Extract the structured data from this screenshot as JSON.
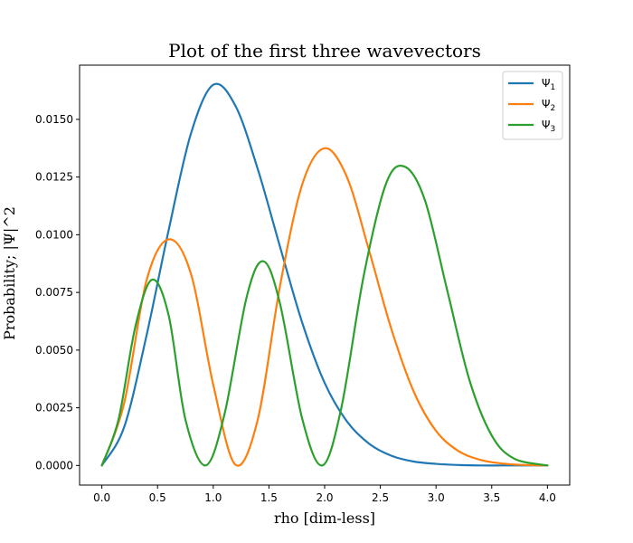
{
  "chart_data": {
    "type": "line",
    "title": "Plot of the first three wavevectors",
    "xlabel": "rho [dim-less]",
    "ylabel": "Probability; |Ψ|^2",
    "xlim": [
      -0.2,
      4.2
    ],
    "ylim": [
      -0.00085,
      0.01735
    ],
    "xticks": [
      0.0,
      0.5,
      1.0,
      1.5,
      2.0,
      2.5,
      3.0,
      3.5,
      4.0
    ],
    "xtick_labels": [
      "0.0",
      "0.5",
      "1.0",
      "1.5",
      "2.0",
      "2.5",
      "3.0",
      "3.5",
      "4.0"
    ],
    "yticks": [
      0.0,
      0.0025,
      0.005,
      0.0075,
      0.01,
      0.0125,
      0.015
    ],
    "ytick_labels": [
      "0.0000",
      "0.0025",
      "0.0050",
      "0.0075",
      "0.0100",
      "0.0125",
      "0.0150"
    ],
    "grid": false,
    "legend_position": "top-right",
    "series": [
      {
        "name": "Ψ",
        "subscript": "1",
        "color": "#1f77b4",
        "x": [
          0.0,
          0.2,
          0.4,
          0.6,
          0.8,
          1.0,
          1.2,
          1.4,
          1.6,
          1.8,
          2.0,
          2.2,
          2.4,
          2.6,
          2.8,
          3.0,
          3.2,
          3.4,
          3.6,
          3.8,
          4.0
        ],
        "y": [
          0.0,
          0.00166,
          0.00561,
          0.01021,
          0.01439,
          0.0165,
          0.01558,
          0.01284,
          0.00947,
          0.00617,
          0.00358,
          0.00191,
          0.00094,
          0.00042,
          0.00017,
          7e-05,
          2e-05,
          0.0,
          0.0,
          0.0,
          0.0
        ]
      },
      {
        "name": "Ψ",
        "subscript": "2",
        "color": "#ff7f0e",
        "x": [
          0.0,
          0.2,
          0.4,
          0.6,
          0.8,
          1.0,
          1.2,
          1.4,
          1.6,
          1.8,
          2.0,
          2.2,
          2.4,
          2.6,
          2.8,
          3.0,
          3.2,
          3.4,
          3.6,
          3.8,
          4.0
        ],
        "y": [
          0.0,
          0.0027,
          0.008,
          0.0098,
          0.0083,
          0.0035,
          3e-05,
          0.002,
          0.0078,
          0.0122,
          0.01375,
          0.0125,
          0.0093,
          0.0059,
          0.0032,
          0.0015,
          0.00063,
          0.00024,
          8e-05,
          2e-05,
          0.0
        ]
      },
      {
        "name": "Ψ",
        "subscript": "3",
        "color": "#2ca02c",
        "x": [
          0.0,
          0.15,
          0.3,
          0.45,
          0.6,
          0.75,
          0.93,
          1.1,
          1.3,
          1.45,
          1.6,
          1.8,
          1.98,
          2.15,
          2.35,
          2.55,
          2.72,
          2.9,
          3.1,
          3.3,
          3.5,
          3.7,
          4.0
        ],
        "y": [
          0.0,
          0.002,
          0.006,
          0.00805,
          0.0065,
          0.002,
          0.0,
          0.0022,
          0.0073,
          0.00885,
          0.007,
          0.002,
          0.0,
          0.0025,
          0.0082,
          0.0122,
          0.01295,
          0.0115,
          0.0076,
          0.0037,
          0.0013,
          0.0003,
          0.0
        ]
      }
    ]
  }
}
